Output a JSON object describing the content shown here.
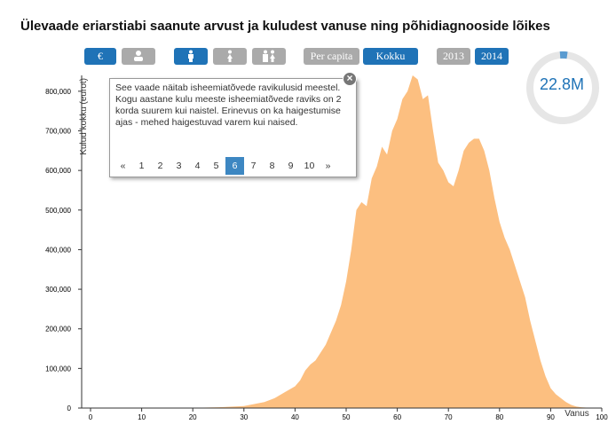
{
  "chart_data": {
    "type": "area",
    "title": "Ülevaade eriarstiabi saanute arvust ja kuludest vanuse ning põhidiagnooside lõikes",
    "y_label": "Kulud kokku (eurot)",
    "x_label": "Vanus",
    "color": "#fcbf80",
    "x": [
      20,
      25,
      30,
      32,
      34,
      36,
      38,
      40,
      41,
      42,
      43,
      44,
      45,
      46,
      47,
      48,
      49,
      50,
      51,
      52,
      53,
      54,
      55,
      56,
      57,
      58,
      59,
      60,
      61,
      62,
      63,
      64,
      65,
      66,
      67,
      68,
      69,
      70,
      71,
      72,
      73,
      74,
      75,
      76,
      77,
      78,
      79,
      80,
      81,
      82,
      83,
      84,
      85,
      86,
      87,
      88,
      89,
      90,
      91,
      92,
      93,
      94,
      95,
      96,
      97,
      98
    ],
    "values": [
      500,
      2000,
      5000,
      10000,
      15000,
      25000,
      40000,
      55000,
      70000,
      95000,
      110000,
      120000,
      140000,
      160000,
      190000,
      220000,
      260000,
      320000,
      400000,
      500000,
      520000,
      510000,
      580000,
      610000,
      660000,
      640000,
      700000,
      730000,
      780000,
      800000,
      840000,
      830000,
      780000,
      790000,
      700000,
      620000,
      600000,
      570000,
      560000,
      600000,
      650000,
      670000,
      680000,
      680000,
      650000,
      600000,
      530000,
      470000,
      430000,
      400000,
      360000,
      320000,
      280000,
      220000,
      170000,
      120000,
      80000,
      50000,
      35000,
      25000,
      15000,
      8000,
      4000,
      2000,
      1000,
      0
    ],
    "xlim": [
      0,
      100
    ],
    "xticks": [
      0,
      10,
      20,
      30,
      40,
      50,
      60,
      70,
      80,
      90,
      100
    ],
    "ylim": [
      0,
      840000
    ],
    "yticks": [
      0,
      {
        "value": 100000,
        "label": "100,000"
      },
      {
        "value": 200000,
        "label": "200,000"
      },
      {
        "value": 300000,
        "label": "300,000"
      },
      {
        "value": 400000,
        "label": "400,000"
      },
      {
        "value": 500000,
        "label": "500,000"
      },
      {
        "value": 600000,
        "label": "600,000"
      },
      {
        "value": 700000,
        "label": "700,000"
      },
      {
        "value": 800000,
        "label": "800,000"
      }
    ]
  },
  "ui": {
    "buttons": [
      "€",
      "Per capita",
      "Kokku",
      "2013",
      "2014"
    ],
    "total": "22.8M",
    "tooltip": {
      "text": "See vaade näitab isheemiatõvede ravikulusid meestel. Kogu aastane kulu meeste isheemiatõvede raviks on 2 korda suurem kui naistel. Erinevus on ka haigestumise ajas - mehed haigestuvad varem kui naised.",
      "pages": [
        "«",
        "1",
        "2",
        "3",
        "4",
        "5",
        "6",
        "7",
        "8",
        "9",
        "10",
        "»"
      ],
      "active": 6
    }
  }
}
